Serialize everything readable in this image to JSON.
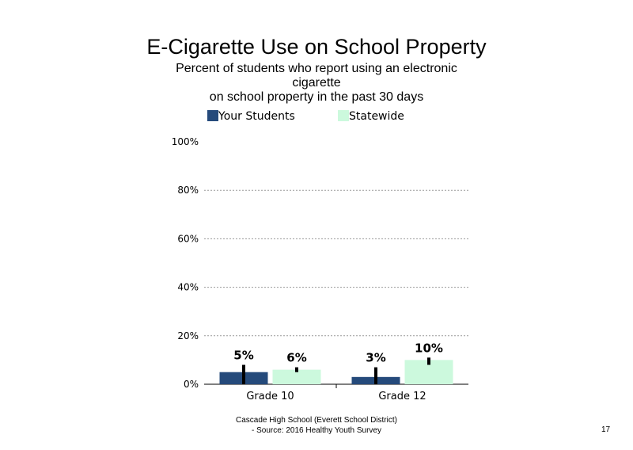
{
  "title": "E-Cigarette Use on School Property",
  "subtitle_lines": [
    "Percent of students  who report using an electronic",
    "cigarette",
    "on school property in the past 30 days"
  ],
  "footer_lines": [
    "Cascade High  School (Everett School District)",
    "- Source: 2016 Healthy  Youth Survey"
  ],
  "page_number": "17",
  "chart_data": {
    "type": "bar",
    "categories": [
      "Grade 10",
      "Grade 12"
    ],
    "series": [
      {
        "name": "Your Students",
        "color": "#254A7B",
        "values": [
          5,
          3
        ],
        "labels": [
          "5%",
          "3%"
        ],
        "error_low": [
          0,
          0
        ],
        "error_high": [
          8,
          7
        ]
      },
      {
        "name": "Statewide",
        "color": "#CCF9DD",
        "values": [
          6,
          10
        ],
        "labels": [
          "6%",
          "10%"
        ],
        "error_low": [
          5,
          8
        ],
        "error_high": [
          7,
          11
        ]
      }
    ],
    "ylim": [
      0,
      100
    ],
    "yticks": [
      0,
      20,
      40,
      60,
      80,
      100
    ],
    "ytick_labels": [
      "0%",
      "20%",
      "40%",
      "60%",
      "80%",
      "100%"
    ],
    "grid": true,
    "legend_position": "top"
  }
}
